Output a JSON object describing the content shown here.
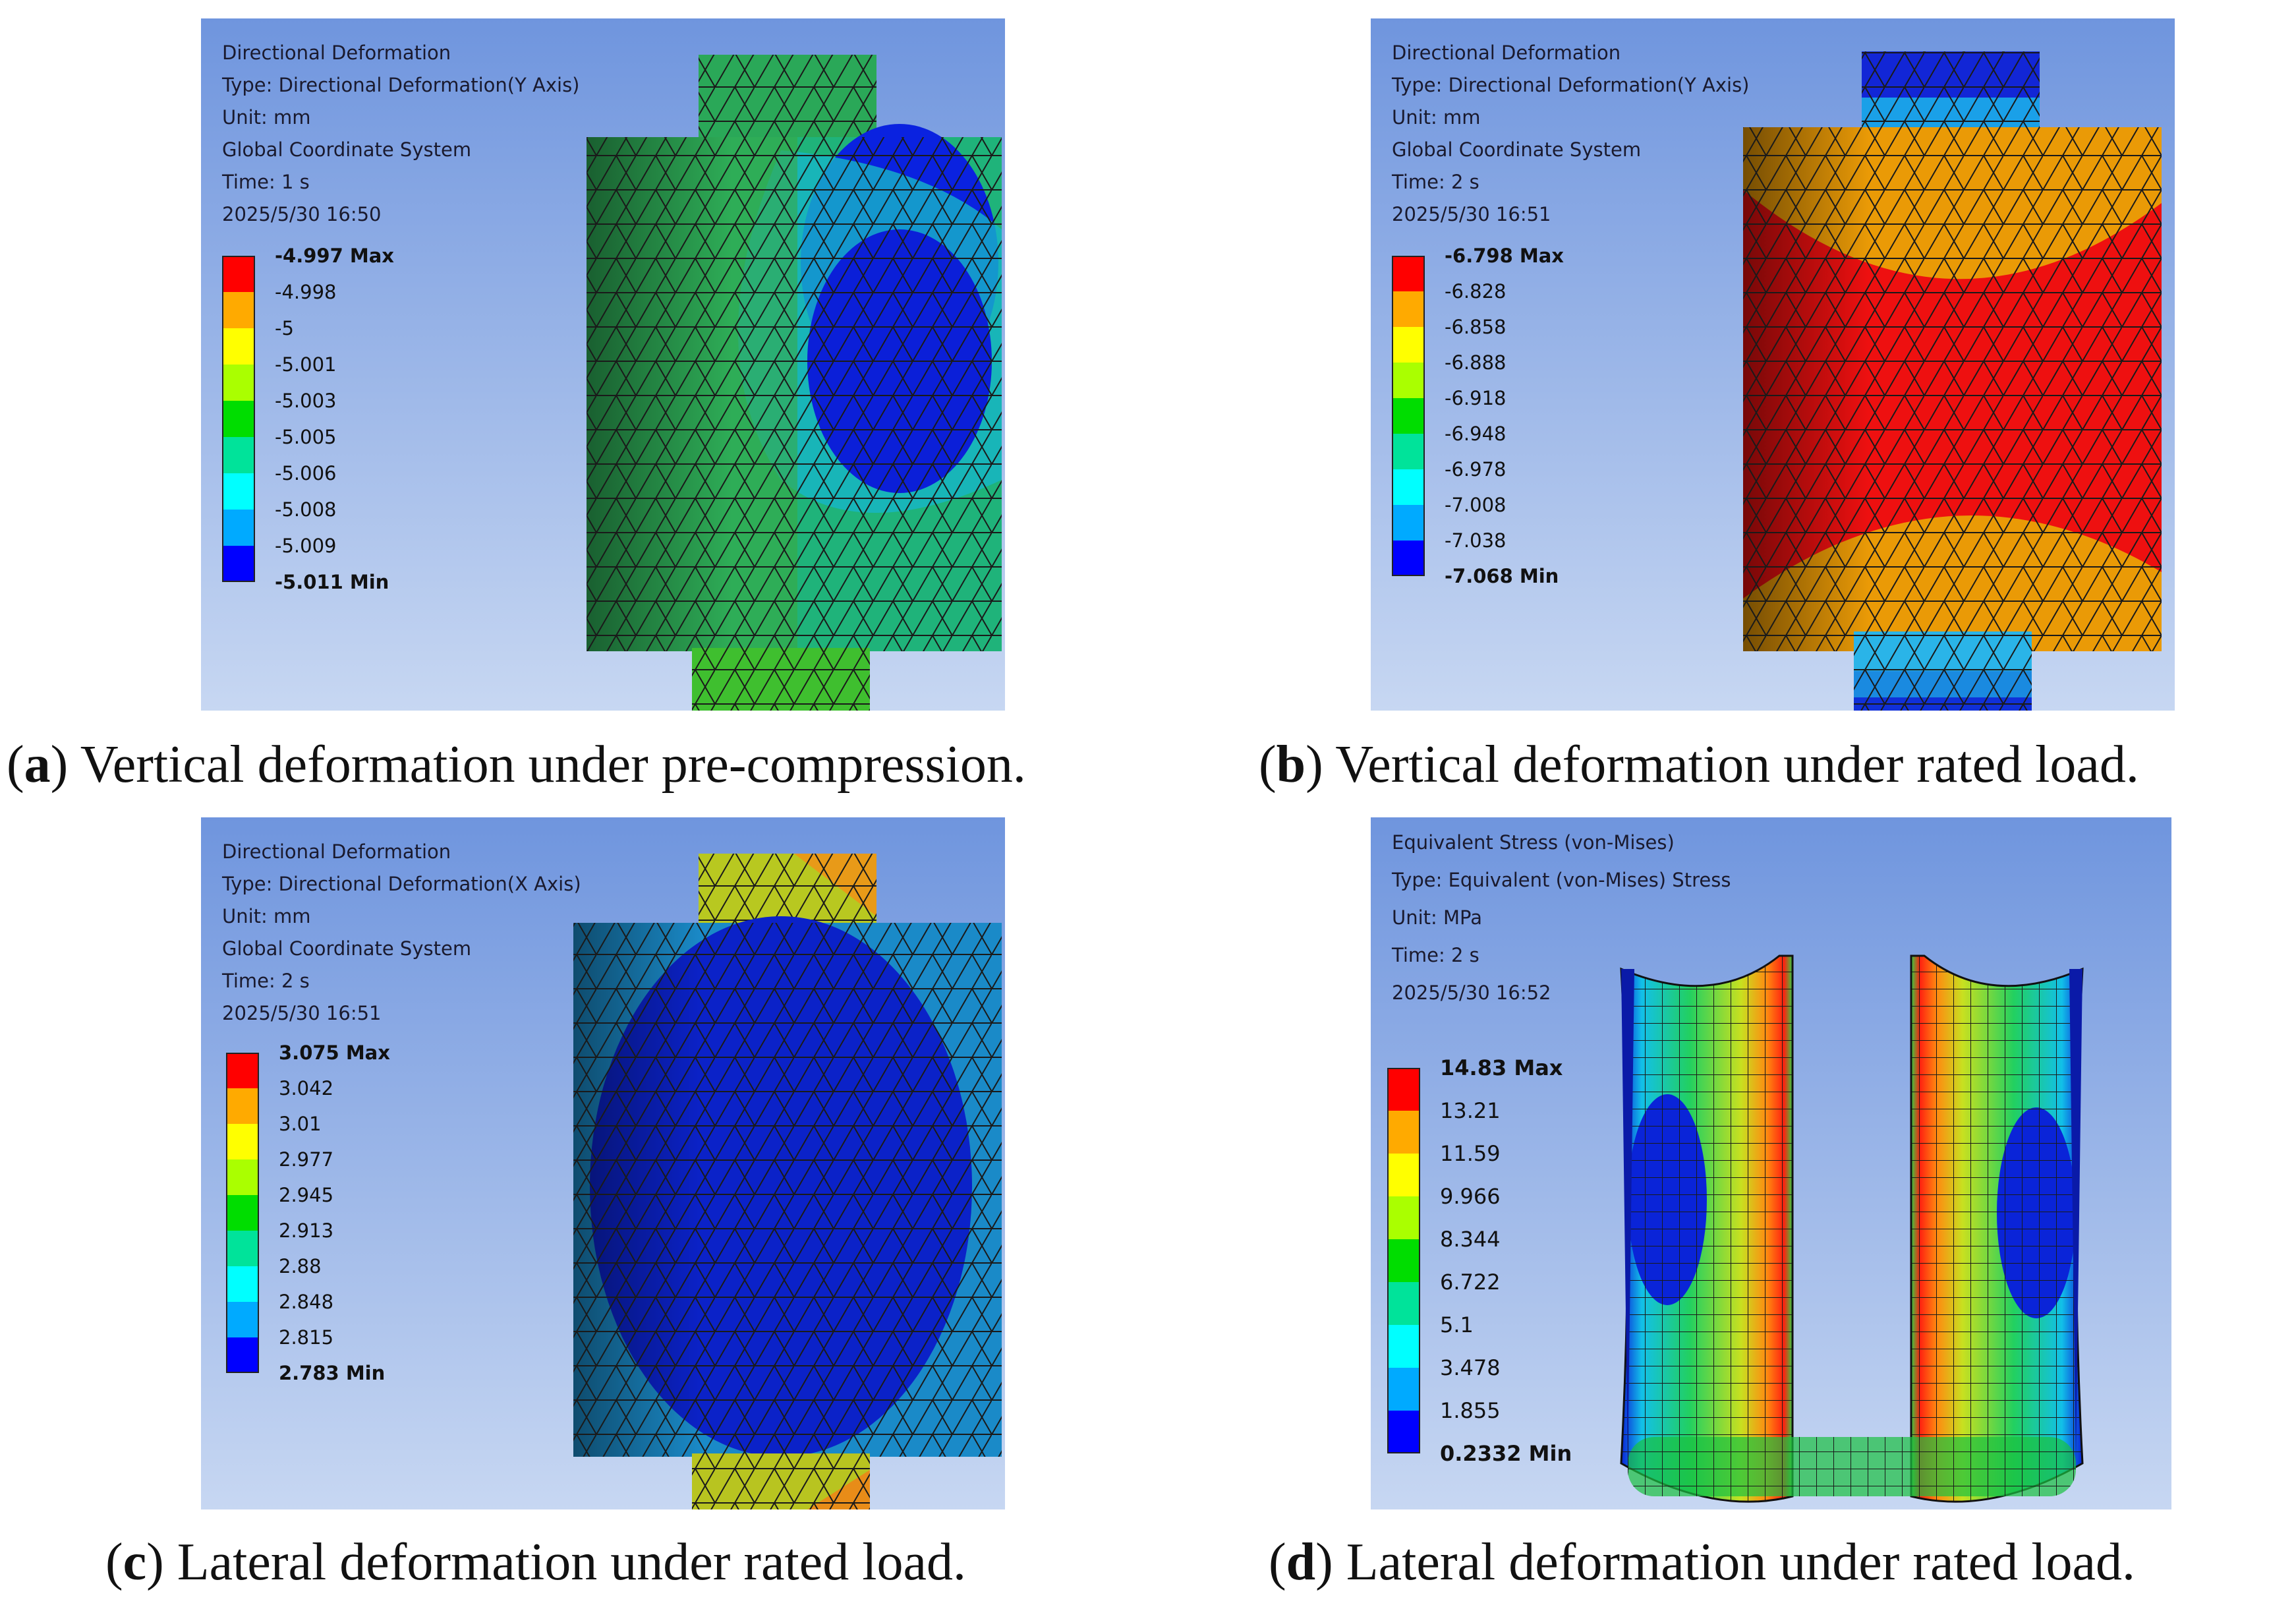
{
  "panels": [
    {
      "id": "a",
      "info": [
        "Directional Deformation",
        "Type: Directional Deformation(Y Axis)",
        "Unit: mm",
        "Global Coordinate System",
        "Time: 1 s",
        "2025/5/30 16:50"
      ],
      "legend": [
        "-4.997 Max",
        "-4.998",
        "-5",
        "-5.001",
        "-5.003",
        "-5.005",
        "-5.006",
        "-5.008",
        "-5.009",
        "-5.011 Min"
      ],
      "caption_letter": "a",
      "caption_text": " Vertical deformation under pre-compression."
    },
    {
      "id": "b",
      "info": [
        "Directional Deformation",
        "Type: Directional Deformation(Y Axis)",
        "Unit: mm",
        "Global Coordinate System",
        "Time: 2 s",
        "2025/5/30 16:51"
      ],
      "legend": [
        "-6.798 Max",
        "-6.828",
        "-6.858",
        "-6.888",
        "-6.918",
        "-6.948",
        "-6.978",
        "-7.008",
        "-7.038",
        "-7.068 Min"
      ],
      "caption_letter": "b",
      "caption_text": " Vertical deformation under rated load."
    },
    {
      "id": "c",
      "info": [
        "Directional Deformation",
        "Type: Directional Deformation(X Axis)",
        "Unit: mm",
        "Global Coordinate System",
        "Time: 2 s",
        "2025/5/30 16:51"
      ],
      "legend": [
        "3.075 Max",
        "3.042",
        "3.01",
        "2.977",
        "2.945",
        "2.913",
        "2.88",
        "2.848",
        "2.815",
        "2.783 Min"
      ],
      "caption_letter": "c",
      "caption_text": " Lateral deformation under rated load."
    },
    {
      "id": "d",
      "info": [
        "Equivalent Stress (von-Mises)",
        "Type: Equivalent (von-Mises) Stress",
        "Unit: MPa",
        "Time: 2 s",
        "2025/5/30 16:52"
      ],
      "legend": [
        "14.83 Max",
        "13.21",
        "11.59",
        "9.966",
        "8.344",
        "6.722",
        "5.1",
        "3.478",
        "1.855",
        "0.2332 Min"
      ],
      "caption_letter": "d",
      "caption_text": " Lateral deformation under rated load."
    }
  ],
  "colors": {
    "scale": [
      "#ff0000",
      "#ffaa00",
      "#ffff00",
      "#aaff00",
      "#00dd00",
      "#00e39a",
      "#00ffff",
      "#00aaff",
      "#0000ff"
    ],
    "bg_top": "#6f95de",
    "bg_bottom": "#c7d7f2"
  }
}
